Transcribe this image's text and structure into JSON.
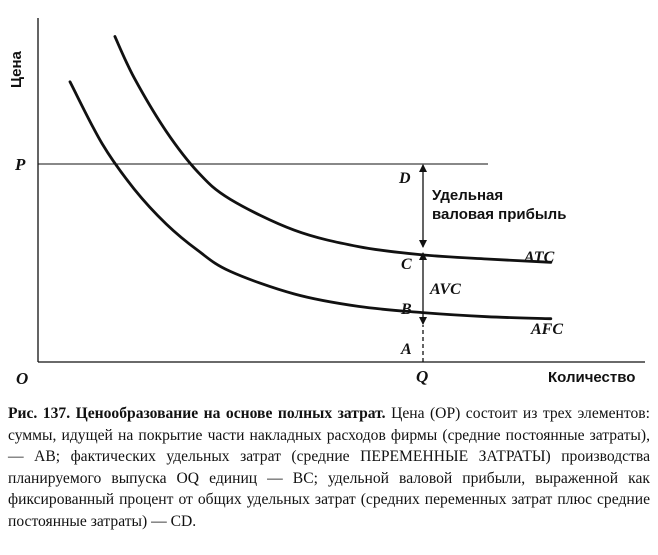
{
  "figure": {
    "y_axis_label": "Цена",
    "x_axis_label": "Количество",
    "origin_label": "O",
    "price_label": "P",
    "quantity_label": "Q",
    "point_labels": {
      "A": "A",
      "B": "B",
      "C": "C",
      "D": "D"
    },
    "curve_labels": {
      "atc": "ATC",
      "afc": "AFC"
    },
    "segment_labels": {
      "avc": "AVC",
      "profit_line1": "Удельная",
      "profit_line2": "валовая прибыль"
    }
  },
  "chart_data": {
    "type": "line",
    "title": "",
    "xlabel": "Количество",
    "ylabel": "Цена",
    "axis_ticks": false,
    "grid": false,
    "series": [
      {
        "name": "ATC",
        "x": [
          1.2,
          1.5,
          2.0,
          2.5,
          3.0,
          4.0,
          5.0,
          6.0,
          7.0,
          8.0
        ],
        "y": [
          7.9,
          6.9,
          5.6,
          4.6,
          3.95,
          3.2,
          2.8,
          2.6,
          2.5,
          2.42
        ]
      },
      {
        "name": "AFC",
        "x": [
          0.5,
          1.0,
          1.5,
          2.0,
          2.5,
          3.0,
          4.0,
          5.0,
          6.0,
          7.0,
          8.0
        ],
        "y": [
          6.8,
          5.3,
          4.2,
          3.35,
          2.7,
          2.2,
          1.65,
          1.35,
          1.2,
          1.1,
          1.05
        ]
      }
    ],
    "reference_lines": [
      {
        "name": "P",
        "type": "horizontal",
        "y": 4.8
      },
      {
        "name": "Q",
        "type": "vertical",
        "x": 6.0
      }
    ],
    "points": [
      {
        "label": "A",
        "x": 6.0,
        "y": 0
      },
      {
        "label": "B",
        "x": 6.0,
        "y": 1.2
      },
      {
        "label": "C",
        "x": 6.0,
        "y": 2.6
      },
      {
        "label": "D",
        "x": 6.0,
        "y": 4.8
      }
    ],
    "segments": [
      {
        "label": "AVC",
        "from": "B",
        "to": "C"
      },
      {
        "label": "Удельная валовая прибыль",
        "from": "C",
        "to": "D"
      }
    ]
  },
  "caption": {
    "figure_number": "Рис. 137.",
    "title": "Ценообразование на основе полных затрат.",
    "body": "Цена (OP) состоит из трех элементов: суммы, идущей на покрытие части накладных расходов фирмы (средние постоянные затраты), — AB; фактических удельных затрат (средние ПЕРЕМЕННЫЕ ЗАТРАТЫ) производства планируемого выпуска OQ единиц — BC; удельной валовой прибыли, выраженной как фиксированный процент от общих удельных затрат (средних переменных затрат плюс средние постоянные затраты) — CD."
  }
}
